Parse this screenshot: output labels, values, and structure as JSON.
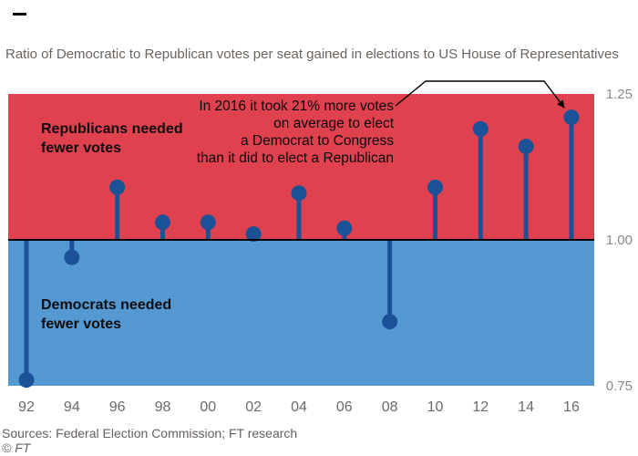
{
  "page": {
    "title": "Ratio of Democratic to Republican votes per seat gained in elections to US House of Representatives",
    "sources": "Sources: Federal Election Commission; FT research",
    "copyright": "© FT"
  },
  "chart_data": {
    "type": "lollipop",
    "title": "Ratio of Democratic to Republican votes per seat gained in elections to US House of Representatives",
    "categories": [
      "92",
      "94",
      "96",
      "98",
      "00",
      "02",
      "04",
      "06",
      "08",
      "10",
      "12",
      "14",
      "16"
    ],
    "values": [
      0.76,
      0.97,
      1.09,
      1.03,
      1.03,
      1.01,
      1.08,
      1.02,
      0.86,
      1.09,
      1.19,
      1.16,
      1.21
    ],
    "baseline": 1.0,
    "ylim": [
      0.75,
      1.25
    ],
    "yticks": [
      {
        "label": "1.25",
        "value": 1.25
      },
      {
        "label": "1.00",
        "value": 1.0
      },
      {
        "label": "0.75",
        "value": 0.75
      }
    ],
    "annotation": "In 2016 it took 21% more votes\non average to elect\na Democrat to Congress\nthan it did to elect a Republican",
    "region_labels": {
      "republican": "Republicans needed\nfewer votes",
      "democrat": "Democrats needed\nfewer votes"
    },
    "legend_position": "none",
    "grid": false,
    "colors": {
      "republican_band": "#df414f",
      "democrat_band": "#5599d3",
      "stem": "#1b5196",
      "baseline_line": "#000000",
      "leader_line": "#000000"
    }
  }
}
